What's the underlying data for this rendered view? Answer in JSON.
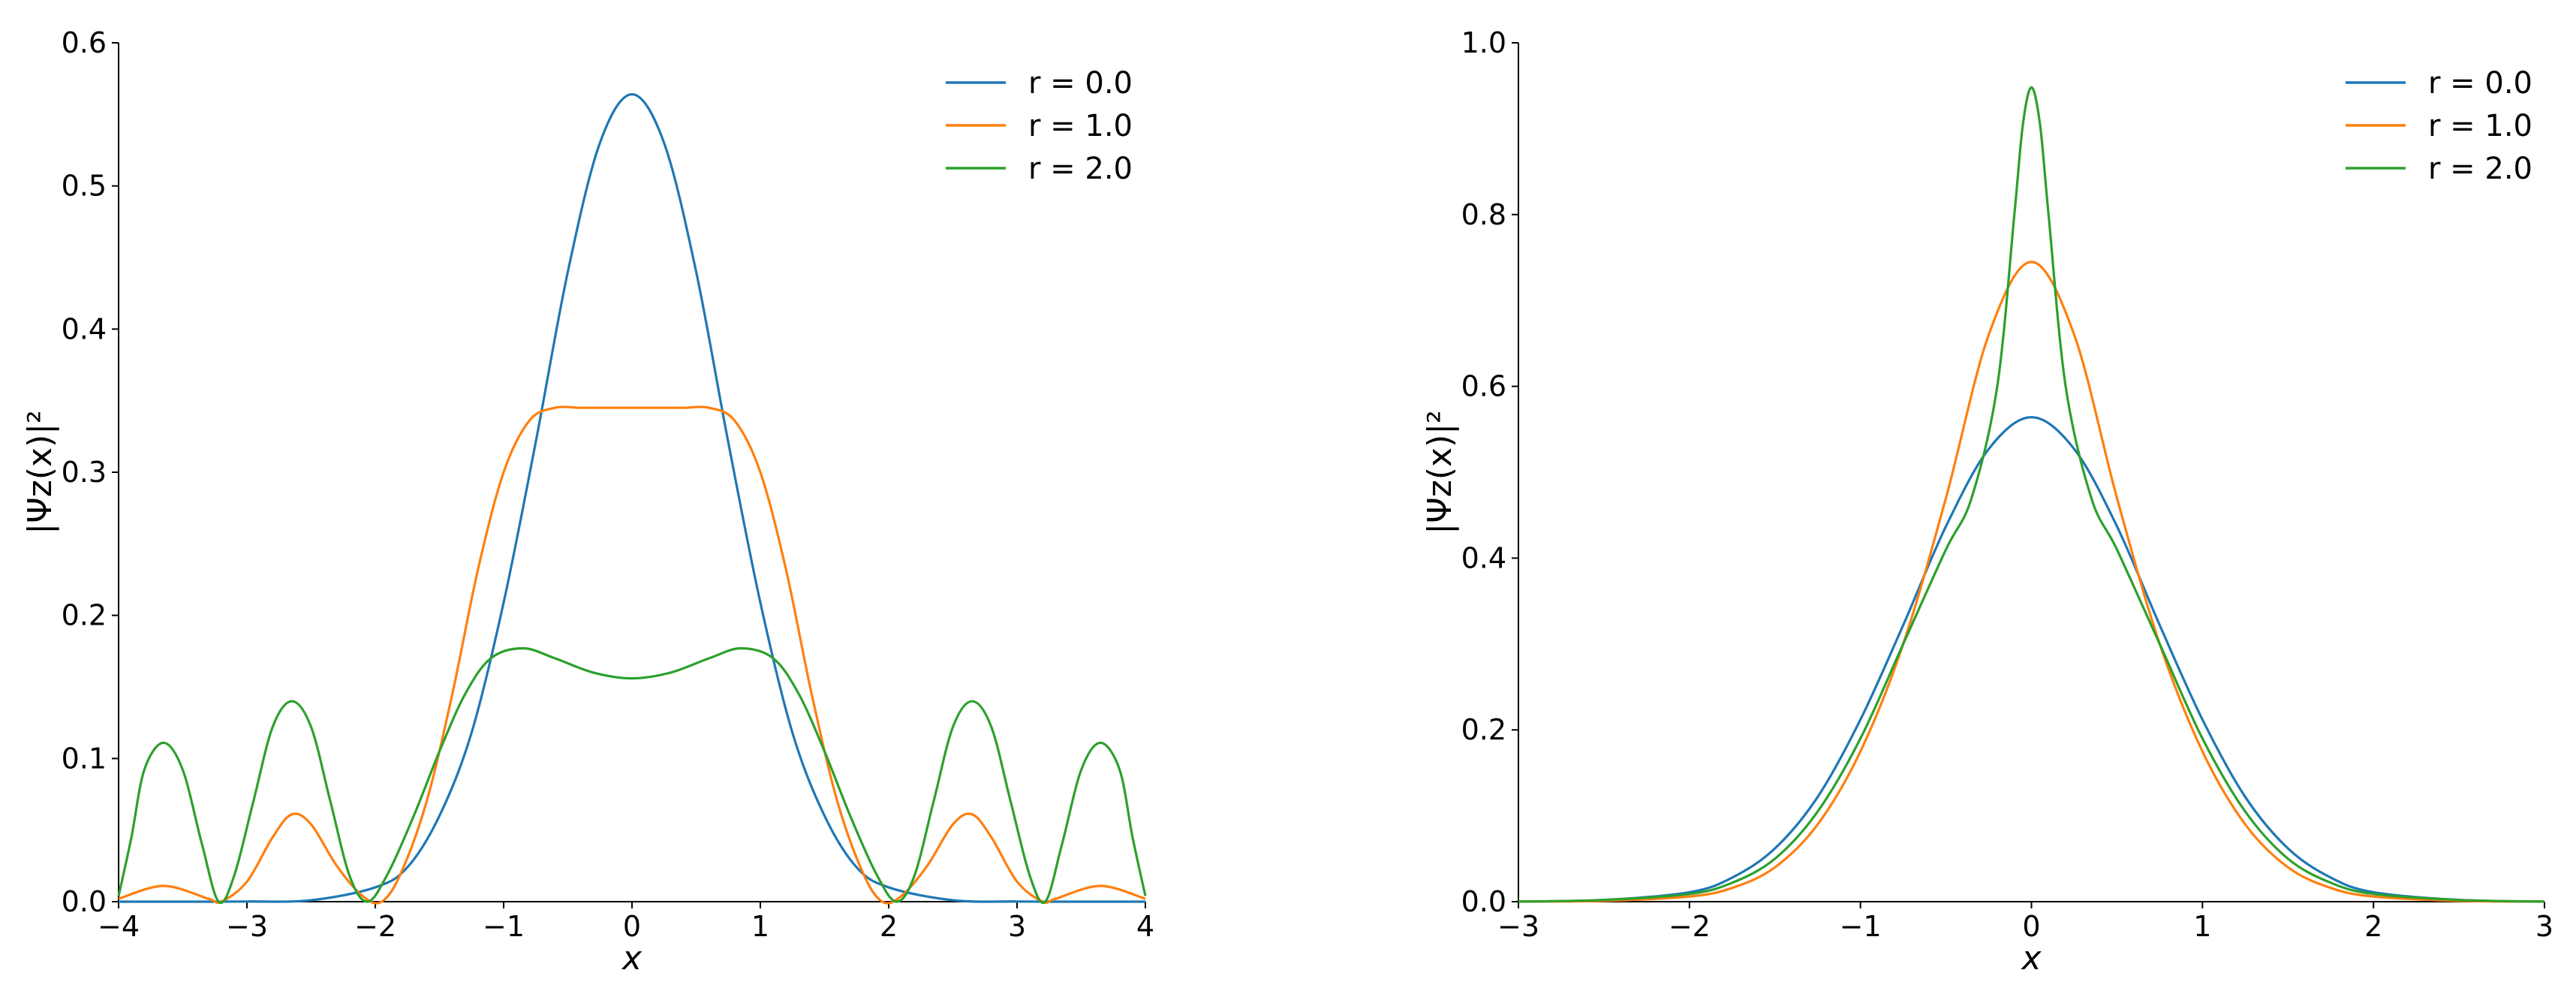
{
  "chart_data": [
    {
      "type": "line",
      "xlabel": "x",
      "ylabel": "|Ψz(x)|²",
      "xlim": [
        -4,
        4
      ],
      "ylim": [
        0,
        0.6
      ],
      "xticks": [
        "−4",
        "−3",
        "−2",
        "−1",
        "0",
        "1",
        "2",
        "3",
        "4"
      ],
      "yticks": [
        "0.0",
        "0.1",
        "0.2",
        "0.3",
        "0.4",
        "0.5",
        "0.6"
      ],
      "grid": false,
      "legend_position": "top-right",
      "series": [
        {
          "name": "r = 0.0",
          "color": "#1f77b4",
          "x": [
            -4,
            -3.5,
            -3,
            -2.5,
            -2,
            -1.75,
            -1.5,
            -1.25,
            -1,
            -0.75,
            -0.5,
            -0.25,
            0,
            0.25,
            0.5,
            0.75,
            1,
            1.25,
            1.5,
            1.75,
            2,
            2.5,
            3,
            3.5,
            4
          ],
          "y": [
            0,
            0,
            0.0001,
            0.001,
            0.01,
            0.024,
            0.06,
            0.118,
            0.209,
            0.321,
            0.44,
            0.53,
            0.564,
            0.53,
            0.44,
            0.321,
            0.209,
            0.118,
            0.06,
            0.024,
            0.01,
            0.001,
            0.0001,
            0,
            0
          ]
        },
        {
          "name": "r = 1.0",
          "color": "#ff7f0e",
          "x": [
            -4,
            -3.65,
            -3.3,
            -3.2,
            -3.0,
            -2.8,
            -2.65,
            -2.5,
            -2.3,
            -2.1,
            -1.95,
            -1.8,
            -1.6,
            -1.4,
            -1.2,
            -1.0,
            -0.8,
            -0.6,
            -0.4,
            -0.2,
            0,
            0.2,
            0.4,
            0.6,
            0.8,
            1.0,
            1.2,
            1.4,
            1.6,
            1.8,
            1.95,
            2.1,
            2.3,
            2.5,
            2.65,
            2.8,
            3.0,
            3.2,
            3.3,
            3.65,
            4
          ],
          "y": [
            0.002,
            0.011,
            0.002,
            0.0,
            0.014,
            0.045,
            0.061,
            0.054,
            0.025,
            0.004,
            0.0,
            0.02,
            0.07,
            0.145,
            0.232,
            0.3,
            0.336,
            0.345,
            0.345,
            0.345,
            0.345,
            0.345,
            0.345,
            0.345,
            0.336,
            0.3,
            0.232,
            0.145,
            0.07,
            0.02,
            0.0,
            0.004,
            0.025,
            0.054,
            0.061,
            0.045,
            0.014,
            0.0,
            0.002,
            0.011,
            0.002
          ]
        },
        {
          "name": "r = 2.0",
          "color": "#2ca02c",
          "x": [
            -4,
            -3.9,
            -3.8,
            -3.65,
            -3.5,
            -3.35,
            -3.22,
            -3.1,
            -2.95,
            -2.8,
            -2.65,
            -2.5,
            -2.35,
            -2.2,
            -2.06,
            -1.9,
            -1.7,
            -1.5,
            -1.3,
            -1.1,
            -0.85,
            -0.6,
            -0.3,
            0,
            0.3,
            0.6,
            0.85,
            1.1,
            1.3,
            1.5,
            1.7,
            1.9,
            2.06,
            2.2,
            2.35,
            2.5,
            2.65,
            2.8,
            2.95,
            3.1,
            3.22,
            3.35,
            3.5,
            3.65,
            3.8,
            3.9,
            4
          ],
          "y": [
            0.004,
            0.045,
            0.092,
            0.111,
            0.092,
            0.04,
            0.0,
            0.018,
            0.07,
            0.122,
            0.14,
            0.122,
            0.07,
            0.018,
            0.0,
            0.02,
            0.06,
            0.105,
            0.145,
            0.17,
            0.177,
            0.17,
            0.16,
            0.156,
            0.16,
            0.17,
            0.177,
            0.17,
            0.145,
            0.105,
            0.06,
            0.02,
            0.0,
            0.018,
            0.07,
            0.122,
            0.14,
            0.122,
            0.07,
            0.018,
            0.0,
            0.04,
            0.092,
            0.111,
            0.092,
            0.045,
            0.004
          ]
        }
      ]
    },
    {
      "type": "line",
      "xlabel": "x",
      "ylabel": "|Ψz(x)|²",
      "xlim": [
        -3,
        3
      ],
      "ylim": [
        0,
        1.0
      ],
      "xticks": [
        "−3",
        "−2",
        "−1",
        "0",
        "1",
        "2",
        "3"
      ],
      "yticks": [
        "0.0",
        "0.2",
        "0.4",
        "0.6",
        "0.8",
        "1.0"
      ],
      "grid": false,
      "legend_position": "top-right",
      "series": [
        {
          "name": "r = 0.0",
          "color": "#1f77b4",
          "x": [
            -3,
            -2.5,
            -2,
            -1.75,
            -1.5,
            -1.25,
            -1,
            -0.75,
            -0.5,
            -0.25,
            0,
            0.25,
            0.5,
            0.75,
            1,
            1.25,
            1.5,
            1.75,
            2,
            2.5,
            3
          ],
          "y": [
            0.0001,
            0.002,
            0.011,
            0.028,
            0.062,
            0.122,
            0.212,
            0.322,
            0.437,
            0.527,
            0.564,
            0.527,
            0.437,
            0.322,
            0.212,
            0.122,
            0.062,
            0.028,
            0.011,
            0.002,
            0.0001
          ]
        },
        {
          "name": "r = 1.0",
          "color": "#ff7f0e",
          "x": [
            -3,
            -2.5,
            -2,
            -1.75,
            -1.5,
            -1.25,
            -1,
            -0.75,
            -0.5,
            -0.25,
            0,
            0.25,
            0.5,
            0.75,
            1,
            1.25,
            1.5,
            1.75,
            2,
            2.5,
            3
          ],
          "y": [
            0.0001,
            0.001,
            0.006,
            0.016,
            0.04,
            0.09,
            0.175,
            0.3,
            0.47,
            0.66,
            0.745,
            0.66,
            0.47,
            0.3,
            0.175,
            0.09,
            0.04,
            0.016,
            0.006,
            0.001,
            0.0001
          ]
        },
        {
          "name": "r = 2.0",
          "color": "#2ca02c",
          "x": [
            -3,
            -2.5,
            -2,
            -1.75,
            -1.5,
            -1.25,
            -1,
            -0.75,
            -0.5,
            -0.35,
            -0.2,
            -0.1,
            -0.05,
            0,
            0.05,
            0.1,
            0.2,
            0.35,
            0.5,
            0.75,
            1,
            1.25,
            1.5,
            1.75,
            2,
            2.5,
            3
          ],
          "y": [
            0.0001,
            0.002,
            0.009,
            0.022,
            0.05,
            0.105,
            0.19,
            0.3,
            0.41,
            0.47,
            0.6,
            0.8,
            0.905,
            0.948,
            0.905,
            0.8,
            0.6,
            0.47,
            0.41,
            0.3,
            0.19,
            0.105,
            0.05,
            0.022,
            0.009,
            0.002,
            0.0001
          ]
        }
      ]
    }
  ]
}
